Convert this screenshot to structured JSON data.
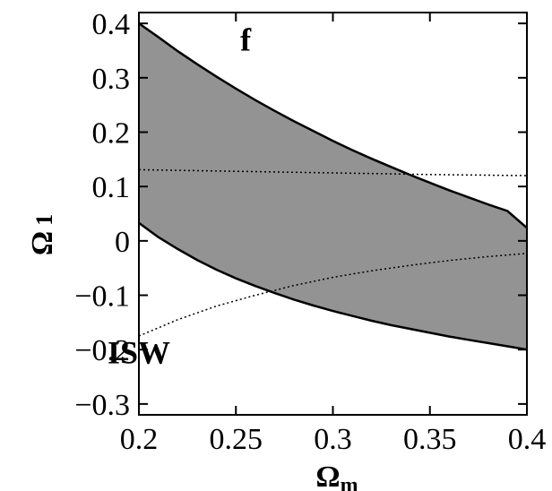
{
  "chart_data": {
    "type": "area",
    "title": "",
    "xlabel": "Ω",
    "xlabel_sub": "m",
    "ylabel": "Ω",
    "ylabel_sub": "1",
    "xlim": [
      0.2,
      0.4
    ],
    "ylim": [
      -0.32,
      0.42
    ],
    "xticks": [
      0.2,
      0.25,
      0.3,
      0.35,
      0.4
    ],
    "xtick_labels": [
      "0.2",
      "0.25",
      "0.3",
      "0.35",
      "0.4"
    ],
    "yticks": [
      -0.3,
      -0.2,
      -0.1,
      0,
      0.1,
      0.2,
      0.3,
      0.4
    ],
    "ytick_labels": [
      "−0.3",
      "−0.2",
      "−0.1",
      "0",
      "0.1",
      "0.2",
      "0.3",
      "0.4"
    ],
    "grid": false,
    "band": {
      "fill": "#939393",
      "x": [
        0.2,
        0.21,
        0.22,
        0.23,
        0.24,
        0.25,
        0.26,
        0.27,
        0.28,
        0.29,
        0.3,
        0.31,
        0.32,
        0.33,
        0.34,
        0.35,
        0.36,
        0.37,
        0.38,
        0.39,
        0.4
      ],
      "upper": [
        0.4,
        0.375,
        0.349,
        0.325,
        0.302,
        0.28,
        0.259,
        0.239,
        0.22,
        0.202,
        0.184,
        0.167,
        0.151,
        0.136,
        0.121,
        0.107,
        0.093,
        0.08,
        0.067,
        0.055,
        0.024
      ],
      "lower": [
        0.033,
        0.007,
        -0.015,
        -0.035,
        -0.053,
        -0.069,
        -0.083,
        -0.096,
        -0.108,
        -0.119,
        -0.129,
        -0.138,
        -0.147,
        -0.155,
        -0.162,
        -0.169,
        -0.176,
        -0.182,
        -0.188,
        -0.194,
        -0.2
      ]
    },
    "dotted_lines": [
      {
        "x": [
          0.2,
          0.25,
          0.3,
          0.35,
          0.4
        ],
        "y": [
          0.131,
          0.128,
          0.125,
          0.122,
          0.12
        ]
      },
      {
        "x": [
          0.2,
          0.22,
          0.24,
          0.26,
          0.28,
          0.3,
          0.32,
          0.34,
          0.36,
          0.38,
          0.4
        ],
        "y": [
          -0.175,
          -0.145,
          -0.12,
          -0.1,
          -0.082,
          -0.067,
          -0.055,
          -0.045,
          -0.036,
          -0.029,
          -0.023
        ]
      }
    ],
    "annotations": [
      {
        "text": "f",
        "x": 0.255,
        "y": 0.35
      },
      {
        "text": "ISW",
        "x": 0.2,
        "y": -0.225
      }
    ]
  }
}
